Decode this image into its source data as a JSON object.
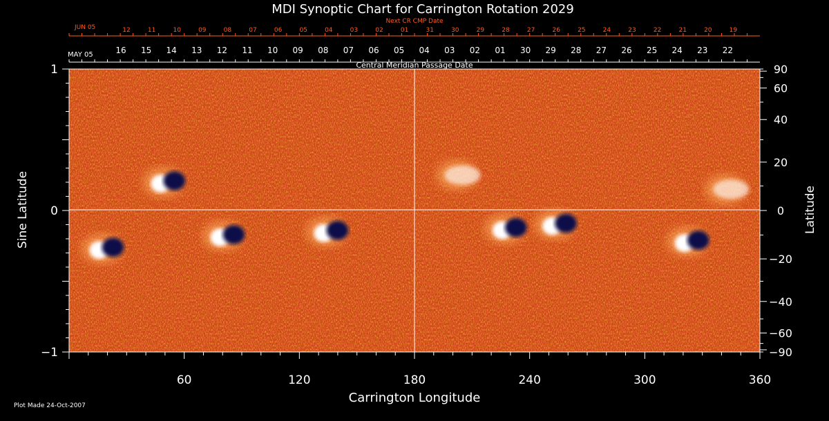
{
  "chart_data": {
    "type": "heatmap",
    "title": "MDI Synoptic Chart for Carrington Rotation 2029",
    "xlabel": "Carrington Longitude",
    "ylabel_left": "Sine Latitude",
    "ylabel_right": "Latitude",
    "xlim": [
      0,
      360
    ],
    "ylim": [
      -1,
      1
    ],
    "x_ticks": [
      60,
      120,
      180,
      240,
      300,
      360
    ],
    "y_ticks_left": [
      {
        "value": 1,
        "label": "1"
      },
      {
        "value": 0,
        "label": "0"
      },
      {
        "value": -1,
        "label": "−1"
      }
    ],
    "y_ticks_right": [
      {
        "lat": 90,
        "label": "90"
      },
      {
        "lat": 60,
        "label": "60"
      },
      {
        "lat": 40,
        "label": "40"
      },
      {
        "lat": 20,
        "label": "20"
      },
      {
        "lat": 0,
        "label": "0"
      },
      {
        "lat": -20,
        "label": "−20"
      },
      {
        "lat": -40,
        "label": "−40"
      },
      {
        "lat": -60,
        "label": "−60"
      },
      {
        "lat": -90,
        "label": "−90"
      }
    ],
    "top_axis_next_cr": {
      "label": "Next CR CMP Date",
      "month": "JUN 05",
      "days": [
        "12",
        "11",
        "10",
        "09",
        "08",
        "07",
        "06",
        "05",
        "04",
        "03",
        "02",
        "01",
        "31",
        "30",
        "29",
        "28",
        "27",
        "26",
        "25",
        "24",
        "23",
        "22",
        "21",
        "20",
        "19"
      ]
    },
    "top_axis_cmp": {
      "label": "Central Meridian Passage Date",
      "month": "MAY 05",
      "days": [
        "16",
        "15",
        "14",
        "13",
        "12",
        "11",
        "10",
        "09",
        "08",
        "07",
        "06",
        "05",
        "04",
        "03",
        "02",
        "01",
        "30",
        "29",
        "28",
        "27",
        "26",
        "25",
        "24",
        "23",
        "22"
      ]
    },
    "field_colors": {
      "positive": "#ffffff",
      "neutral": "#d2461a",
      "negative": "#10104a"
    },
    "active_regions": [
      {
        "lon": 52,
        "sinlat": 0.2,
        "polarity": "bipolar"
      },
      {
        "lon": 20,
        "sinlat": -0.27,
        "polarity": "bipolar"
      },
      {
        "lon": 83,
        "sinlat": -0.18,
        "polarity": "bipolar"
      },
      {
        "lon": 137,
        "sinlat": -0.15,
        "polarity": "bipolar"
      },
      {
        "lon": 205,
        "sinlat": 0.25,
        "polarity": "plage"
      },
      {
        "lon": 230,
        "sinlat": -0.13,
        "polarity": "bipolar"
      },
      {
        "lon": 256,
        "sinlat": -0.1,
        "polarity": "bipolar"
      },
      {
        "lon": 325,
        "sinlat": -0.22,
        "polarity": "bipolar"
      },
      {
        "lon": 345,
        "sinlat": 0.15,
        "polarity": "plage"
      }
    ],
    "grid": false
  },
  "footer": {
    "plot_made": "Plot Made 24-Oct-2007"
  }
}
